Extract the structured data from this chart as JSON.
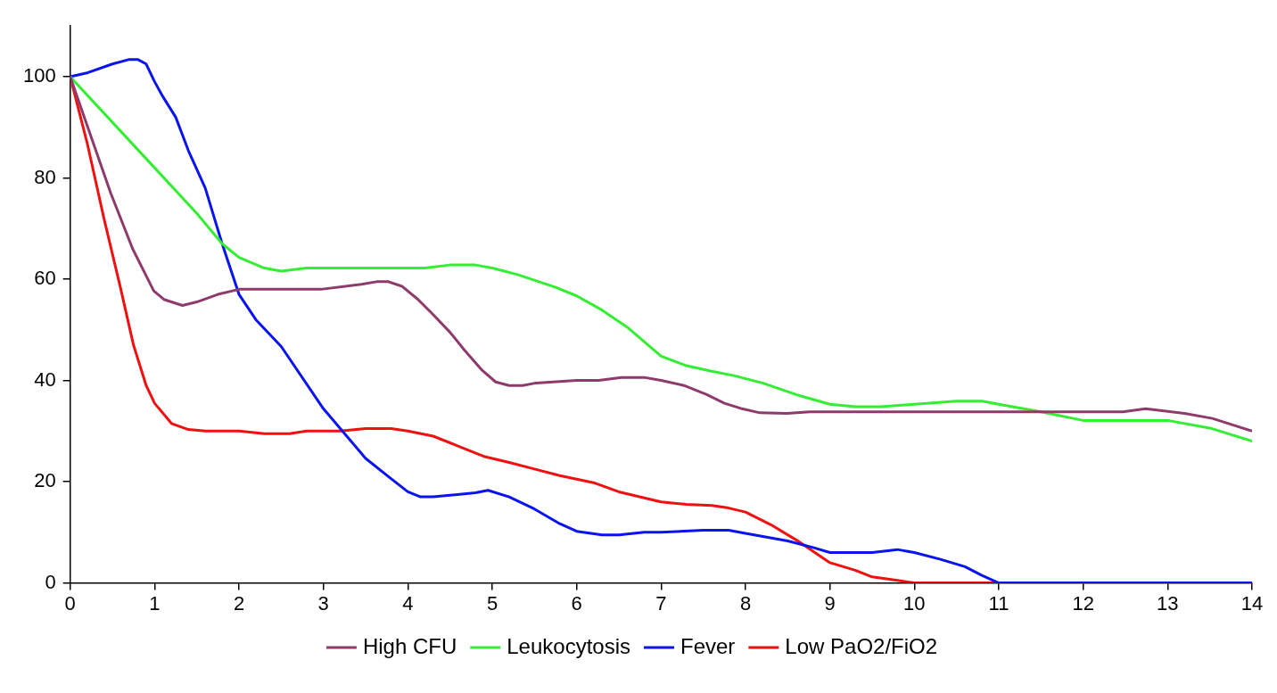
{
  "chart_data": {
    "type": "line",
    "xlim": [
      0,
      14
    ],
    "xticks": [
      0,
      1,
      2,
      3,
      4,
      5,
      6,
      7,
      8,
      9,
      10,
      11,
      12,
      13,
      14
    ],
    "ylim": [
      0,
      110
    ],
    "yticks": [
      0,
      20,
      40,
      60,
      80,
      100
    ],
    "legend": "bottom",
    "marker": "none",
    "line_style": "solid",
    "series": [
      {
        "name": "High CFU",
        "color": "#8e3b6c",
        "x": [
          0,
          0.25,
          0.48,
          0.74,
          0.99,
          1.11,
          1.33,
          1.5,
          1.75,
          2,
          2.97,
          3.45,
          3.63,
          3.77,
          3.93,
          4.12,
          4.3,
          4.5,
          4.67,
          4.88,
          5.04,
          5.2,
          5.36,
          5.52,
          6,
          6.26,
          6.53,
          6.8,
          7,
          7.27,
          7.54,
          7.75,
          7.96,
          8.17,
          8.49,
          8.76,
          9.66,
          11.78,
          12.47,
          12.74,
          13.2,
          13.53,
          14
        ],
        "values": [
          100,
          88,
          77,
          66,
          57.7,
          56,
          54.8,
          55.5,
          57,
          58,
          58,
          59,
          59.5,
          59.5,
          58.6,
          56,
          53,
          49.5,
          46,
          42,
          39.7,
          39,
          39,
          39.5,
          40,
          40,
          40.6,
          40.6,
          40,
          39,
          37.2,
          35.5,
          34.4,
          33.6,
          33.5,
          33.8,
          33.8,
          33.8,
          33.8,
          34.4,
          33.5,
          32.5,
          30
        ]
      },
      {
        "name": "Leukocytosis",
        "color": "#33ee33",
        "x": [
          0,
          1,
          1.5,
          1.8,
          2,
          2.3,
          2.5,
          2.8,
          4.2,
          4.5,
          4.8,
          5,
          5.3,
          5.75,
          6,
          6.3,
          6.6,
          7,
          7.3,
          7.6,
          7.85,
          8.2,
          8.6,
          9,
          9.3,
          9.6,
          10,
          10.5,
          10.8,
          11,
          11.5,
          12,
          13,
          13.5,
          14
        ],
        "values": [
          100,
          82,
          73,
          67,
          64.3,
          62.2,
          61.6,
          62.2,
          62.2,
          62.8,
          62.8,
          62.2,
          60.9,
          58.4,
          56.7,
          53.9,
          50.5,
          44.8,
          42.9,
          41.8,
          41,
          39.5,
          37.2,
          35.3,
          34.8,
          34.8,
          35.3,
          35.9,
          35.9,
          35.3,
          33.8,
          32.1,
          32.1,
          30.6,
          28
        ]
      },
      {
        "name": "Fever",
        "color": "#0a14f0",
        "x": [
          0,
          0.21,
          0.5,
          0.7,
          0.8,
          0.9,
          1,
          1.1,
          1.25,
          1.4,
          1.6,
          1.8,
          2,
          2.2,
          2.5,
          3,
          3.5,
          3.8,
          4,
          4.15,
          4.3,
          4.8,
          4.95,
          5.2,
          5.5,
          5.8,
          6,
          6.3,
          6.5,
          6.8,
          7,
          7.5,
          7.8,
          8,
          8.5,
          8.8,
          9,
          9.5,
          9.8,
          10,
          10.3,
          10.6,
          10.8,
          11,
          14
        ],
        "values": [
          100,
          100.8,
          102.5,
          103.4,
          103.4,
          102.5,
          99,
          96,
          92,
          85.4,
          78,
          67,
          57,
          52,
          46.7,
          34.4,
          24.6,
          20.6,
          18,
          17,
          17,
          17.8,
          18.3,
          17,
          14.6,
          11.7,
          10.2,
          9.5,
          9.5,
          10,
          10,
          10.4,
          10.4,
          9.8,
          8.3,
          7,
          6,
          6,
          6.6,
          6,
          4.7,
          3.2,
          1.5,
          0,
          0
        ]
      },
      {
        "name": "Low PaO2/FiO2",
        "color": "#f01010",
        "x": [
          0,
          0.2,
          0.4,
          0.6,
          0.75,
          0.9,
          1,
          1.2,
          1.4,
          1.6,
          2,
          2.3,
          2.6,
          2.8,
          3.2,
          3.5,
          3.8,
          4,
          4.3,
          4.6,
          4.9,
          5.2,
          5.5,
          5.8,
          6.2,
          6.5,
          6.8,
          7,
          7.3,
          7.6,
          7.8,
          8,
          8.3,
          8.6,
          9,
          9.3,
          9.5,
          9.8,
          10,
          14
        ],
        "values": [
          100,
          87,
          72,
          58,
          47,
          39,
          35.5,
          31.5,
          30.3,
          30,
          30,
          29.5,
          29.5,
          30,
          30,
          30.5,
          30.5,
          30,
          29,
          27,
          25,
          23.8,
          22.5,
          21.2,
          19.8,
          18,
          16.8,
          16,
          15.5,
          15.3,
          14.8,
          14,
          11.5,
          8.5,
          4,
          2.5,
          1.2,
          0.5,
          0,
          0
        ]
      }
    ]
  }
}
